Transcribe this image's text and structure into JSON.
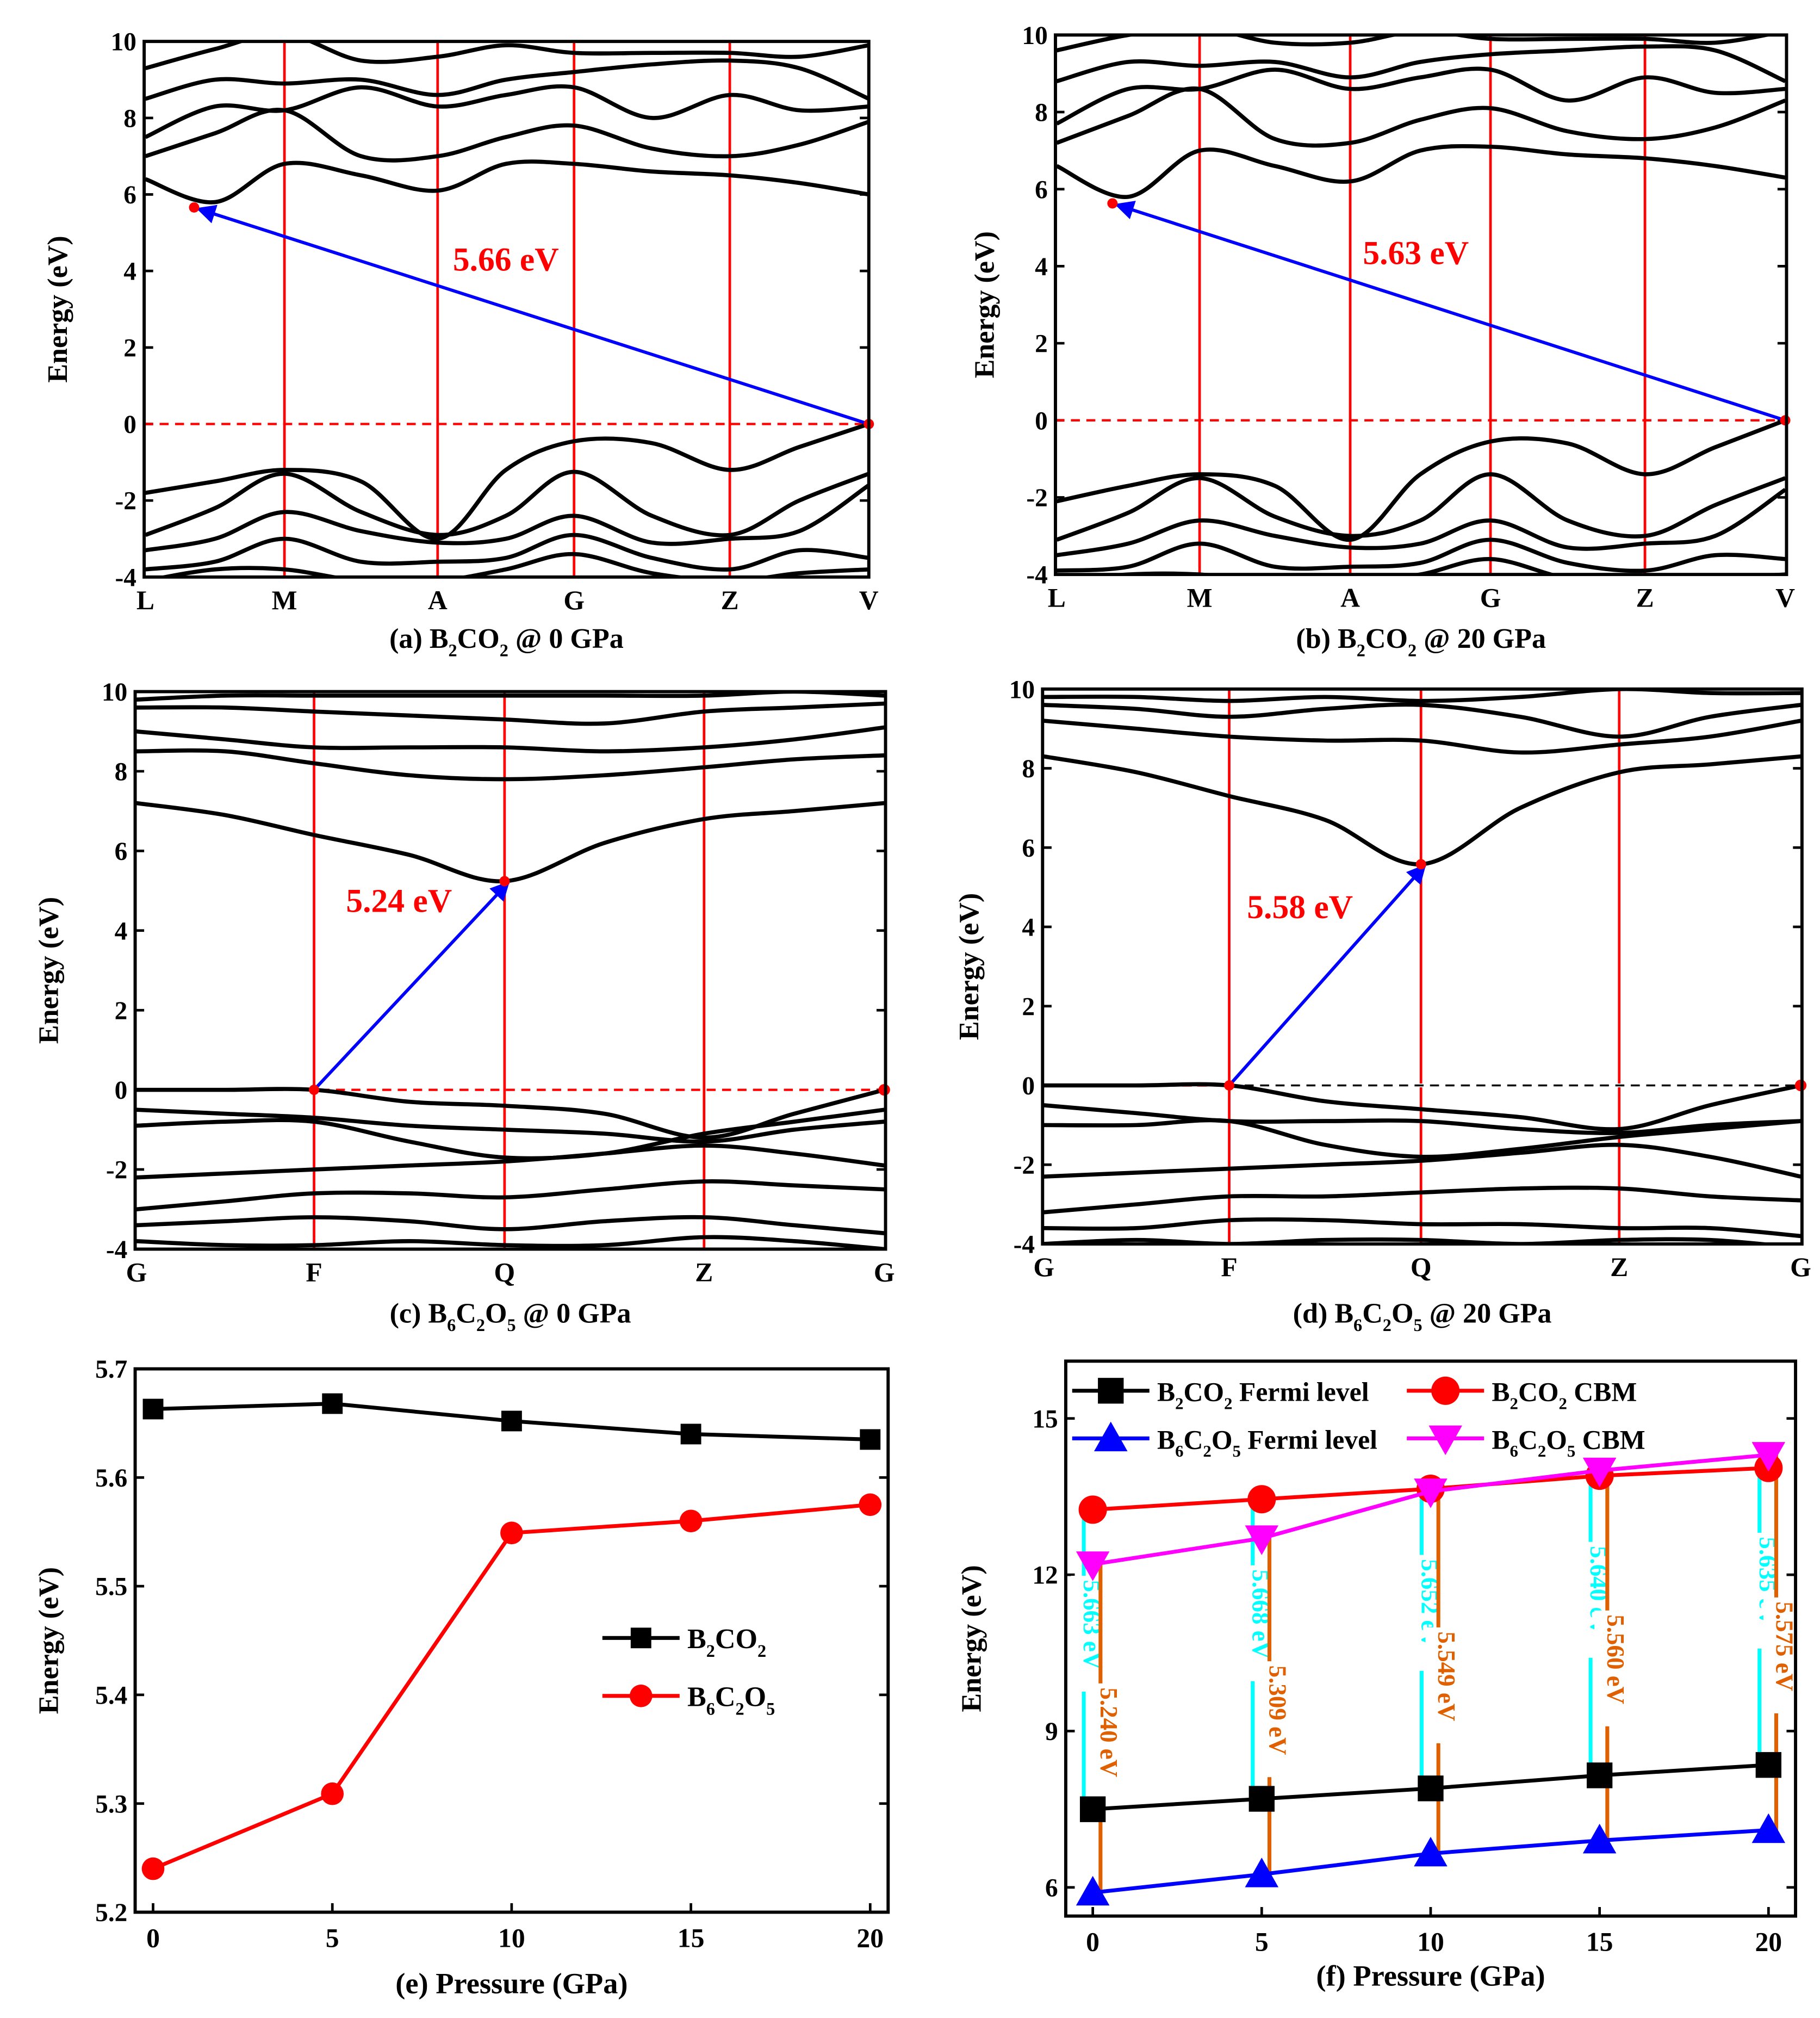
{
  "chart_data": [
    {
      "id": "a",
      "type": "line",
      "title": [
        {
          "t": "(a) B"
        },
        {
          "t": "2",
          "sub": true
        },
        {
          "t": "CO"
        },
        {
          "t": "2",
          "sub": true
        },
        {
          "t": " @ 0 GPa"
        }
      ],
      "ylabel": "Energy (eV)",
      "ylim": [
        -4,
        10
      ],
      "yticks": [
        -4,
        -2,
        0,
        2,
        4,
        6,
        8,
        10
      ],
      "klabels": [
        "L",
        "M",
        "A",
        "G",
        "Z",
        "V"
      ],
      "bands": [
        [
          6.4,
          5.8,
          6.8,
          6.5,
          6.1,
          6.8,
          6.8,
          6.6,
          6.5,
          6.3,
          6.0
        ],
        [
          7.0,
          7.6,
          8.2,
          7.0,
          7.0,
          7.5,
          7.8,
          7.2,
          7.0,
          7.3,
          7.9
        ],
        [
          7.5,
          8.3,
          8.2,
          8.8,
          8.3,
          8.6,
          8.8,
          8.0,
          8.6,
          8.2,
          8.3
        ],
        [
          8.5,
          9.0,
          8.9,
          9.0,
          8.6,
          9.0,
          9.2,
          9.4,
          9.5,
          9.3,
          8.5
        ],
        [
          9.3,
          9.8,
          10.2,
          9.5,
          9.6,
          9.9,
          9.7,
          9.7,
          9.7,
          9.6,
          9.9
        ],
        [
          -1.8,
          -1.5,
          -1.2,
          -1.5,
          -3.0,
          -1.2,
          -0.45,
          -0.5,
          -1.2,
          -0.6,
          0.0
        ],
        [
          -2.9,
          -2.2,
          -1.3,
          -2.3,
          -2.9,
          -2.4,
          -1.25,
          -2.4,
          -2.9,
          -2.0,
          -1.3
        ],
        [
          -3.3,
          -3.0,
          -2.3,
          -2.8,
          -3.1,
          -3.0,
          -2.4,
          -3.1,
          -3.0,
          -2.8,
          -1.6
        ],
        [
          -3.8,
          -3.6,
          -3.0,
          -3.6,
          -3.6,
          -3.5,
          -2.9,
          -3.5,
          -3.8,
          -3.3,
          -3.5
        ],
        [
          -4.1,
          -3.8,
          -3.8,
          -4.1,
          -4.1,
          -3.8,
          -3.4,
          -3.9,
          -4.1,
          -3.9,
          -3.8
        ]
      ],
      "gap": {
        "label": "5.66 eV",
        "from": [
          5,
          0
        ],
        "to": [
          0.35,
          5.66
        ]
      },
      "fermi_color": "#ff0000"
    },
    {
      "id": "b",
      "type": "line",
      "title": [
        {
          "t": "(b) B"
        },
        {
          "t": "2",
          "sub": true
        },
        {
          "t": "CO"
        },
        {
          "t": "2",
          "sub": true
        },
        {
          "t": " @ 20 GPa"
        }
      ],
      "ylabel": "Energy (eV)",
      "ylim": [
        -4,
        10
      ],
      "yticks": [
        -4,
        -2,
        0,
        2,
        4,
        6,
        8,
        10
      ],
      "klabels": [
        "L",
        "M",
        "A",
        "G",
        "Z",
        "V"
      ],
      "bands": [
        [
          6.6,
          5.8,
          7.0,
          6.6,
          6.2,
          7.0,
          7.1,
          6.9,
          6.8,
          6.6,
          6.3
        ],
        [
          7.2,
          7.9,
          8.6,
          7.3,
          7.2,
          7.8,
          8.1,
          7.5,
          7.3,
          7.6,
          8.3
        ],
        [
          7.7,
          8.6,
          8.6,
          9.1,
          8.6,
          8.9,
          9.1,
          8.3,
          8.9,
          8.5,
          8.6
        ],
        [
          8.8,
          9.3,
          9.2,
          9.3,
          8.9,
          9.3,
          9.5,
          9.6,
          9.7,
          9.6,
          8.8
        ],
        [
          9.6,
          10.0,
          10.2,
          9.8,
          9.8,
          10.1,
          9.9,
          9.9,
          9.9,
          9.8,
          10.1
        ],
        [
          -2.1,
          -1.7,
          -1.4,
          -1.7,
          -3.1,
          -1.4,
          -0.55,
          -0.6,
          -1.4,
          -0.7,
          0.0
        ],
        [
          -3.1,
          -2.4,
          -1.5,
          -2.5,
          -3.0,
          -2.6,
          -1.4,
          -2.6,
          -3.0,
          -2.2,
          -1.5
        ],
        [
          -3.5,
          -3.2,
          -2.6,
          -3.0,
          -3.3,
          -3.2,
          -2.6,
          -3.3,
          -3.2,
          -3.0,
          -1.8
        ],
        [
          -3.9,
          -3.8,
          -3.2,
          -3.8,
          -3.8,
          -3.7,
          -3.1,
          -3.7,
          -3.9,
          -3.5,
          -3.6
        ],
        [
          -4.2,
          -4.0,
          -4.0,
          -4.2,
          -4.2,
          -4.0,
          -3.6,
          -4.1,
          -4.2,
          -4.1,
          -4.0
        ]
      ],
      "gap": {
        "label": "5.63 eV",
        "from": [
          5,
          0
        ],
        "to": [
          0.39,
          5.63
        ]
      },
      "fermi_color": "#ff0000"
    },
    {
      "id": "c",
      "type": "line",
      "title": [
        {
          "t": "(c) B"
        },
        {
          "t": "6",
          "sub": true
        },
        {
          "t": "C"
        },
        {
          "t": "2",
          "sub": true
        },
        {
          "t": "O"
        },
        {
          "t": "5",
          "sub": true
        },
        {
          "t": " @ 0 GPa"
        }
      ],
      "ylabel": "Energy (eV)",
      "ylim": [
        -4,
        10
      ],
      "yticks": [
        -4,
        -2,
        0,
        2,
        4,
        6,
        8,
        10
      ],
      "klabels": [
        "G",
        "F",
        "Q",
        "Z",
        "G"
      ],
      "bands": [
        [
          7.2,
          6.9,
          6.4,
          5.9,
          5.24,
          6.2,
          6.8,
          7.0,
          7.2
        ],
        [
          8.5,
          8.5,
          8.2,
          7.9,
          7.8,
          7.9,
          8.1,
          8.3,
          8.4
        ],
        [
          9.0,
          8.8,
          8.6,
          8.6,
          8.6,
          8.5,
          8.6,
          8.8,
          9.1
        ],
        [
          9.6,
          9.6,
          9.5,
          9.4,
          9.3,
          9.2,
          9.5,
          9.6,
          9.7
        ],
        [
          9.8,
          9.9,
          9.9,
          9.9,
          9.9,
          9.9,
          9.9,
          10.0,
          9.9
        ],
        [
          0.0,
          0.0,
          0.0,
          -0.3,
          -0.4,
          -0.6,
          -1.2,
          -0.6,
          0.0
        ],
        [
          -0.5,
          -0.6,
          -0.7,
          -0.9,
          -1.0,
          -1.1,
          -1.3,
          -1.0,
          -0.8
        ],
        [
          -0.9,
          -0.8,
          -0.8,
          -1.3,
          -1.7,
          -1.6,
          -1.1,
          -0.8,
          -0.5
        ],
        [
          -2.2,
          -2.1,
          -2.0,
          -1.9,
          -1.8,
          -1.6,
          -1.4,
          -1.6,
          -1.9
        ],
        [
          -3.0,
          -2.8,
          -2.6,
          -2.6,
          -2.7,
          -2.5,
          -2.3,
          -2.4,
          -2.5
        ],
        [
          -3.4,
          -3.3,
          -3.2,
          -3.3,
          -3.5,
          -3.3,
          -3.2,
          -3.4,
          -3.6
        ],
        [
          -3.8,
          -3.9,
          -3.9,
          -3.8,
          -3.9,
          -3.9,
          -3.7,
          -3.8,
          -4.0
        ]
      ],
      "gap": {
        "label": "5.24 eV",
        "from": [
          1,
          0
        ],
        "to": [
          2,
          5.24
        ]
      },
      "vbm_dot": [
        4,
        0
      ],
      "fermi_color": "#ff0000"
    },
    {
      "id": "d",
      "type": "line",
      "title": [
        {
          "t": "(d) B"
        },
        {
          "t": "6",
          "sub": true
        },
        {
          "t": "C"
        },
        {
          "t": "2",
          "sub": true
        },
        {
          "t": "O"
        },
        {
          "t": "5",
          "sub": true
        },
        {
          "t": " @ 20 GPa"
        }
      ],
      "ylabel": "Energy (eV)",
      "ylim": [
        -4,
        10
      ],
      "yticks": [
        -4,
        -2,
        0,
        2,
        4,
        6,
        8,
        10
      ],
      "klabels": [
        "G",
        "F",
        "Q",
        "Z",
        "G"
      ],
      "bands": [
        [
          8.3,
          7.9,
          7.3,
          6.7,
          5.58,
          7.0,
          7.9,
          8.1,
          8.3
        ],
        [
          9.2,
          9.0,
          8.8,
          8.7,
          8.7,
          8.4,
          8.6,
          8.8,
          9.2
        ],
        [
          9.6,
          9.5,
          9.3,
          9.5,
          9.6,
          9.3,
          8.8,
          9.3,
          9.6
        ],
        [
          9.8,
          9.8,
          9.7,
          9.8,
          9.7,
          9.8,
          10.0,
          9.9,
          9.9
        ],
        [
          0.0,
          0.0,
          0.0,
          -0.4,
          -0.6,
          -0.8,
          -1.1,
          -0.5,
          0.0
        ],
        [
          -0.5,
          -0.7,
          -0.9,
          -0.9,
          -0.9,
          -1.1,
          -1.2,
          -1.0,
          -0.9
        ],
        [
          -1.0,
          -1.0,
          -0.9,
          -1.5,
          -1.8,
          -1.6,
          -1.3,
          -1.1,
          -0.9
        ],
        [
          -2.3,
          -2.2,
          -2.1,
          -2.0,
          -1.9,
          -1.7,
          -1.5,
          -1.8,
          -2.3
        ],
        [
          -3.2,
          -3.0,
          -2.8,
          -2.8,
          -2.7,
          -2.6,
          -2.6,
          -2.8,
          -2.9
        ],
        [
          -3.6,
          -3.6,
          -3.4,
          -3.4,
          -3.5,
          -3.5,
          -3.6,
          -3.6,
          -3.8
        ],
        [
          -4.0,
          -3.9,
          -4.0,
          -3.9,
          -3.9,
          -4.0,
          -3.9,
          -3.9,
          -4.1
        ]
      ],
      "gap": {
        "label": "5.58 eV",
        "from": [
          1,
          0
        ],
        "to": [
          2,
          5.58
        ]
      },
      "vbm_dot": [
        4,
        0
      ],
      "fermi_color": "#000000"
    },
    {
      "id": "e",
      "type": "line",
      "xlabel": "(e) Pressure (GPa)",
      "ylabel": "Energy (eV)",
      "x": [
        0,
        5,
        10,
        15,
        20
      ],
      "xlim": [
        -0.5,
        20.5
      ],
      "ylim": [
        5.2,
        5.7
      ],
      "xticks": [
        0,
        5,
        10,
        15,
        20
      ],
      "yticks": [
        5.2,
        5.3,
        5.4,
        5.5,
        5.6,
        5.7
      ],
      "legend_position": "center-right",
      "series": [
        {
          "name": [
            {
              "t": "B"
            },
            {
              "t": "2",
              "sub": true
            },
            {
              "t": "CO"
            },
            {
              "t": "2",
              "sub": true
            }
          ],
          "marker": "square",
          "color": "#000000",
          "values": [
            5.663,
            5.668,
            5.652,
            5.64,
            5.635
          ]
        },
        {
          "name": [
            {
              "t": "B"
            },
            {
              "t": "6",
              "sub": true
            },
            {
              "t": "C"
            },
            {
              "t": "2",
              "sub": true
            },
            {
              "t": "O"
            },
            {
              "t": "5",
              "sub": true
            }
          ],
          "marker": "circle",
          "color": "#ff0000",
          "values": [
            5.24,
            5.309,
            5.549,
            5.56,
            5.575
          ]
        }
      ]
    },
    {
      "id": "f",
      "type": "line",
      "xlabel": "(f) Pressure (GPa)",
      "ylabel": "Energy (eV)",
      "x": [
        0,
        5,
        10,
        15,
        20
      ],
      "xlim": [
        -0.8,
        20.8
      ],
      "ylim": [
        5.45,
        16.1
      ],
      "xticks": [
        0,
        5,
        10,
        15,
        20
      ],
      "yticks": [
        6,
        9,
        12,
        15
      ],
      "legend_position": "top",
      "series": [
        {
          "name": [
            {
              "t": "B"
            },
            {
              "t": "2",
              "sub": true
            },
            {
              "t": "CO"
            },
            {
              "t": "2",
              "sub": true
            },
            {
              "t": " Fermi level"
            }
          ],
          "marker": "square",
          "color": "#000000",
          "values": [
            7.5,
            7.7,
            7.9,
            8.15,
            8.35
          ]
        },
        {
          "name": [
            {
              "t": "B"
            },
            {
              "t": "2",
              "sub": true
            },
            {
              "t": "CO"
            },
            {
              "t": "2",
              "sub": true
            },
            {
              "t": " CBM"
            }
          ],
          "marker": "circle",
          "color": "#ff0000",
          "values": [
            13.25,
            13.45,
            13.65,
            13.9,
            14.05
          ]
        },
        {
          "name": [
            {
              "t": "B"
            },
            {
              "t": "6",
              "sub": true
            },
            {
              "t": "C"
            },
            {
              "t": "2",
              "sub": true
            },
            {
              "t": "O"
            },
            {
              "t": "5",
              "sub": true
            },
            {
              "t": " Fermi level"
            }
          ],
          "marker": "triangle-up",
          "color": "#0000ff",
          "values": [
            5.9,
            6.25,
            6.65,
            6.9,
            7.1
          ]
        },
        {
          "name": [
            {
              "t": "B"
            },
            {
              "t": "6",
              "sub": true
            },
            {
              "t": "C"
            },
            {
              "t": "2",
              "sub": true
            },
            {
              "t": "O"
            },
            {
              "t": "5",
              "sub": true
            },
            {
              "t": " CBM"
            }
          ],
          "marker": "triangle-down",
          "color": "#ff00ff",
          "values": [
            12.2,
            12.7,
            13.6,
            14.0,
            14.3
          ]
        }
      ],
      "gap_annotations": [
        {
          "pair": [
            0,
            1
          ],
          "color": "#00ffff",
          "labels": [
            "5.663 eV",
            "5.668 eV",
            "5.652 eV",
            "5.640 eV",
            "5.635 eV"
          ]
        },
        {
          "pair": [
            2,
            3
          ],
          "color": "#e06000",
          "labels": [
            "5.240 eV",
            "5.309 eV",
            "5.549 eV",
            "5.560 eV",
            "5.575 eV"
          ]
        }
      ]
    }
  ]
}
